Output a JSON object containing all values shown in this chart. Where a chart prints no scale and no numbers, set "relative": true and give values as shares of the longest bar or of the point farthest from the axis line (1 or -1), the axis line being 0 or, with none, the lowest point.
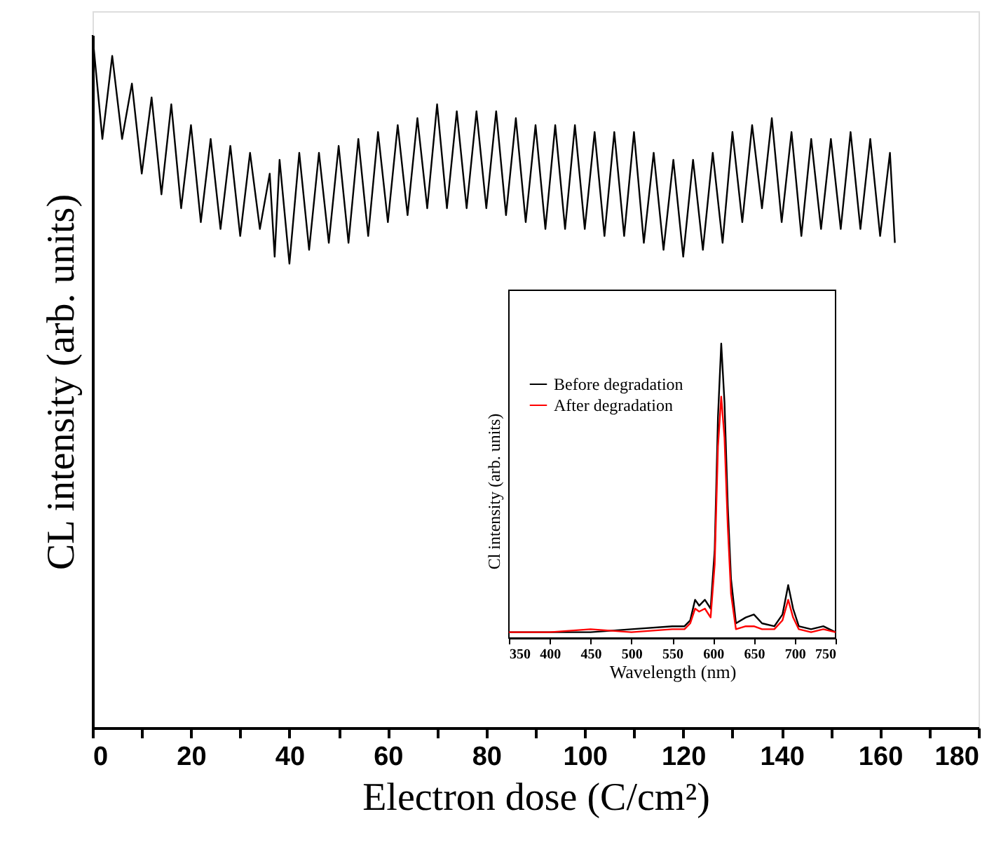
{
  "chart_data": [
    {
      "type": "line",
      "relative": true,
      "xlabel": "Electron dose (C/cm²)",
      "ylabel": "CL intensity (arb. units)",
      "xlim": [
        0,
        180
      ],
      "xticks": [
        0,
        {
          "value": 10,
          "label": null
        },
        20,
        {
          "value": 30,
          "label": null
        },
        40,
        {
          "value": 50,
          "label": null
        },
        60,
        {
          "value": 70,
          "label": null
        },
        80,
        {
          "value": 90,
          "label": null
        },
        100,
        {
          "value": 110,
          "label": null
        },
        120,
        {
          "value": 130,
          "label": null
        },
        140,
        {
          "value": 150,
          "label": null
        },
        160,
        {
          "value": 170,
          "label": null
        },
        180
      ],
      "grid": false,
      "series": [
        {
          "color": "#000000",
          "x": [
            0,
            2,
            4,
            6,
            8,
            10,
            12,
            14,
            16,
            18,
            20,
            22,
            24,
            26,
            28,
            30,
            32,
            34,
            36,
            37,
            38,
            40,
            42,
            44,
            46,
            48,
            50,
            52,
            54,
            56,
            58,
            60,
            62,
            64,
            66,
            68,
            70,
            72,
            74,
            76,
            78,
            80,
            82,
            84,
            86,
            88,
            90,
            92,
            94,
            96,
            98,
            100,
            102,
            104,
            106,
            108,
            110,
            112,
            114,
            116,
            118,
            120,
            122,
            124,
            126,
            128,
            130,
            132,
            134,
            136,
            138,
            140,
            142,
            144,
            146,
            148,
            150,
            152,
            154,
            156,
            158,
            160,
            162,
            163
          ],
          "values": [
            1.0,
            0.85,
            0.97,
            0.85,
            0.93,
            0.8,
            0.91,
            0.77,
            0.9,
            0.75,
            0.87,
            0.73,
            0.85,
            0.72,
            0.84,
            0.71,
            0.83,
            0.72,
            0.8,
            0.68,
            0.82,
            0.67,
            0.83,
            0.69,
            0.83,
            0.7,
            0.84,
            0.7,
            0.85,
            0.71,
            0.86,
            0.73,
            0.87,
            0.74,
            0.88,
            0.75,
            0.9,
            0.75,
            0.89,
            0.75,
            0.89,
            0.75,
            0.89,
            0.74,
            0.88,
            0.73,
            0.87,
            0.72,
            0.87,
            0.72,
            0.87,
            0.72,
            0.86,
            0.71,
            0.86,
            0.71,
            0.86,
            0.7,
            0.83,
            0.69,
            0.82,
            0.68,
            0.82,
            0.69,
            0.83,
            0.7,
            0.86,
            0.73,
            0.87,
            0.75,
            0.88,
            0.73,
            0.86,
            0.71,
            0.85,
            0.72,
            0.85,
            0.72,
            0.86,
            0.72,
            0.85,
            0.71,
            0.83,
            0.7
          ]
        }
      ]
    },
    {
      "type": "line",
      "relative": true,
      "xlabel": "Wavelength (nm)",
      "ylabel": "Cl intensity (arb. units)",
      "xlim": [
        350,
        750
      ],
      "xticks": [
        350,
        400,
        450,
        500,
        550,
        600,
        650,
        700,
        750
      ],
      "grid": false,
      "legend": "top left",
      "series": [
        {
          "name": "Before degradation",
          "color": "#000000",
          "x": [
            350,
            400,
            450,
            500,
            550,
            565,
            572,
            578,
            583,
            590,
            597,
            602,
            606,
            610,
            614,
            618,
            622,
            628,
            640,
            650,
            660,
            675,
            685,
            692,
            698,
            705,
            720,
            735,
            750
          ],
          "values": [
            0.02,
            0.02,
            0.02,
            0.03,
            0.04,
            0.04,
            0.06,
            0.13,
            0.11,
            0.13,
            0.1,
            0.3,
            0.75,
            1.0,
            0.8,
            0.45,
            0.2,
            0.05,
            0.07,
            0.08,
            0.05,
            0.04,
            0.08,
            0.18,
            0.1,
            0.04,
            0.03,
            0.04,
            0.02
          ]
        },
        {
          "name": "After degradation",
          "color": "#ff0000",
          "x": [
            350,
            400,
            450,
            500,
            550,
            565,
            572,
            578,
            583,
            590,
            597,
            602,
            606,
            610,
            614,
            618,
            622,
            628,
            640,
            650,
            660,
            675,
            685,
            692,
            698,
            705,
            720,
            735,
            750
          ],
          "values": [
            0.02,
            0.02,
            0.03,
            0.02,
            0.03,
            0.03,
            0.05,
            0.1,
            0.09,
            0.1,
            0.07,
            0.25,
            0.65,
            0.82,
            0.68,
            0.38,
            0.15,
            0.03,
            0.04,
            0.04,
            0.03,
            0.03,
            0.06,
            0.13,
            0.07,
            0.03,
            0.02,
            0.03,
            0.02
          ]
        }
      ]
    }
  ]
}
